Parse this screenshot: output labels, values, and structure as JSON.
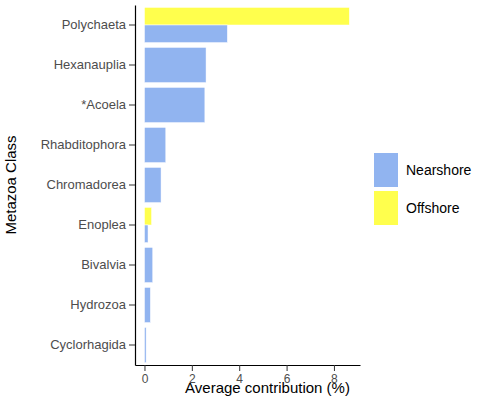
{
  "chart_data": {
    "type": "bar",
    "orientation": "horizontal",
    "x_label": "Average contribution (%)",
    "y_label": "Metazoa Class",
    "categories": [
      "Polychaeta",
      "Hexanauplia",
      "*Acoela",
      "Rhabditophora",
      "Chromadorea",
      "Enoplea",
      "Bivalvia",
      "Hydrozoa",
      "Cyclorhagida"
    ],
    "series": [
      {
        "name": "Nearshore",
        "color": "#91b4f0",
        "values": [
          3.5,
          2.6,
          2.55,
          0.9,
          0.7,
          0.15,
          0.35,
          0.25,
          0.07
        ]
      },
      {
        "name": "Offshore",
        "color": "#ffff4d",
        "values": [
          8.65,
          null,
          null,
          null,
          null,
          0.3,
          null,
          null,
          null
        ]
      }
    ],
    "xlim": [
      -0.4,
      9.1
    ],
    "xticks": [
      0,
      2,
      4,
      6,
      8
    ],
    "legend": "right"
  }
}
